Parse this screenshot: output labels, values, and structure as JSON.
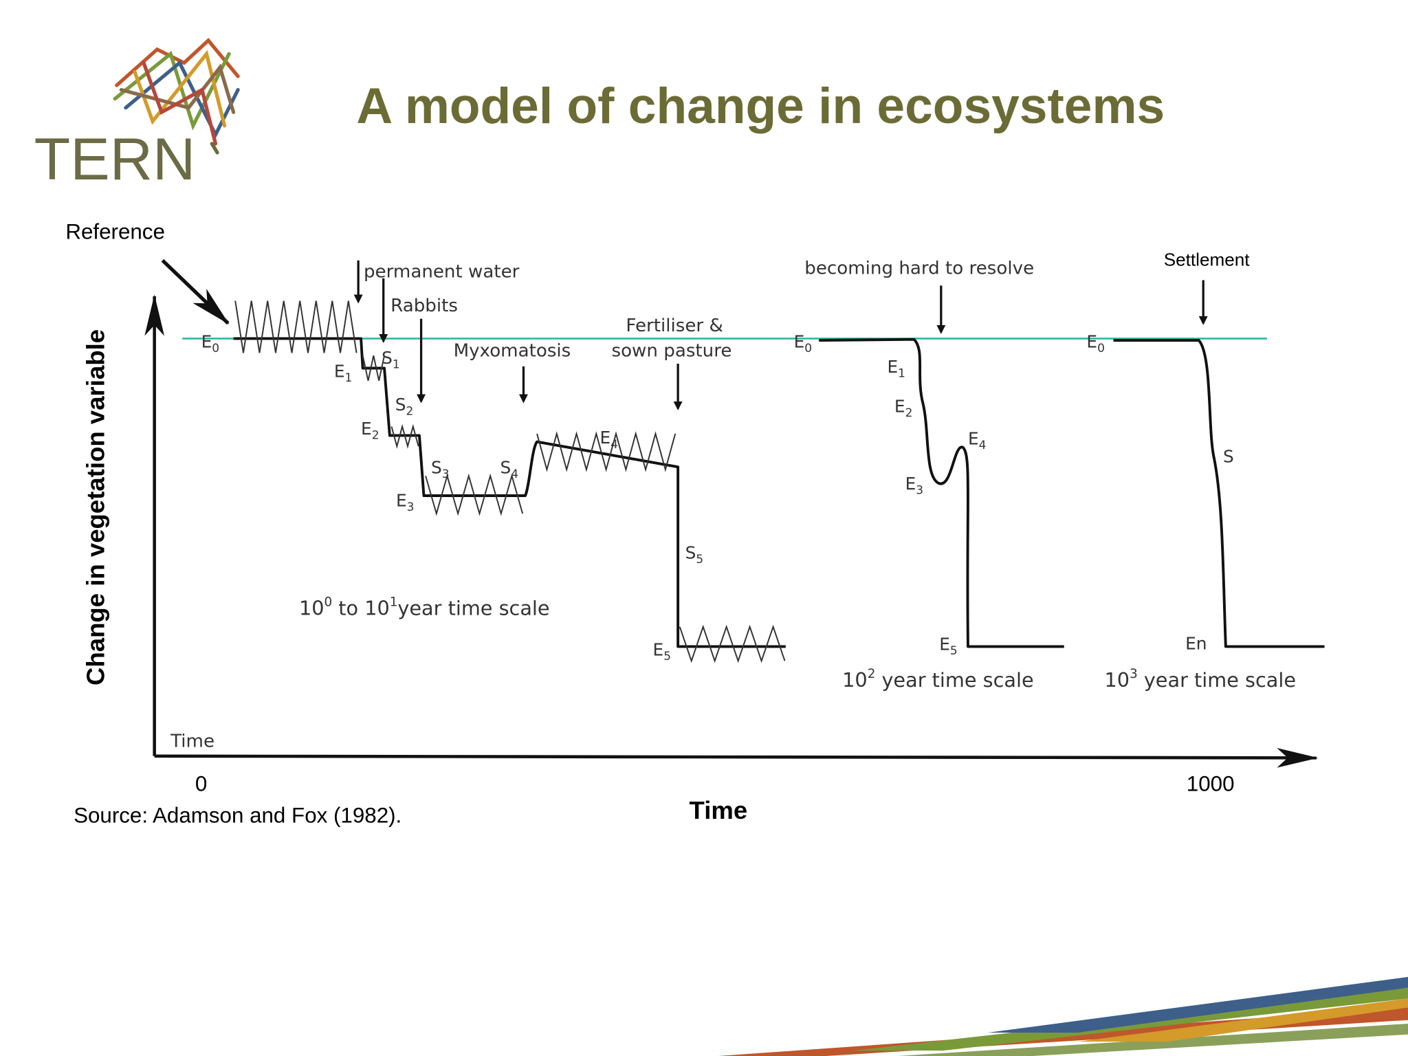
{
  "header": {
    "title": "A model of change in ecosystems",
    "logo_text": "TERN"
  },
  "diagram": {
    "y_axis_label": "Change in vegetation variable",
    "x_axis_label": "Time",
    "axis_corner_label": "Time",
    "x_start": "0",
    "x_end": "1000",
    "reference": "Reference",
    "source": "Source: Adamson and Fox (1982).",
    "events": [
      "permanent water",
      "Rabbits",
      "Myxomatosis",
      "Fertiliser &",
      "sown pasture",
      "becoming hard to resolve",
      "Settlement"
    ],
    "curves": [
      {
        "labels": [
          {
            "letter": "E",
            "sub": "0"
          },
          {
            "letter": "E",
            "sub": "1"
          },
          {
            "letter": "S",
            "sub": "1"
          },
          {
            "letter": "S",
            "sub": "2"
          },
          {
            "letter": "E",
            "sub": "2"
          },
          {
            "letter": "S",
            "sub": "3"
          },
          {
            "letter": "S",
            "sub": "4"
          },
          {
            "letter": "E",
            "sub": "3"
          },
          {
            "letter": "E",
            "sub": "4"
          },
          {
            "letter": "S",
            "sub": "5"
          },
          {
            "letter": "E",
            "sub": "5"
          }
        ],
        "scale": [
          "10",
          "0",
          " to 10",
          "1",
          "year time scale"
        ]
      },
      {
        "labels": [
          {
            "letter": "E",
            "sub": "0"
          },
          {
            "letter": "E",
            "sub": "1"
          },
          {
            "letter": "E",
            "sub": "2"
          },
          {
            "letter": "E",
            "sub": "3"
          },
          {
            "letter": "E",
            "sub": "4"
          },
          {
            "letter": "E",
            "sub": "5"
          }
        ],
        "scale": [
          "10",
          "2",
          "  year time scale"
        ]
      },
      {
        "labels": [
          {
            "letter": "E",
            "sub": "0"
          },
          {
            "letter": "S",
            "sub": ""
          },
          {
            "letter": "En",
            "sub": ""
          }
        ],
        "scale": [
          "10",
          "3",
          "  year time scale"
        ]
      }
    ]
  }
}
